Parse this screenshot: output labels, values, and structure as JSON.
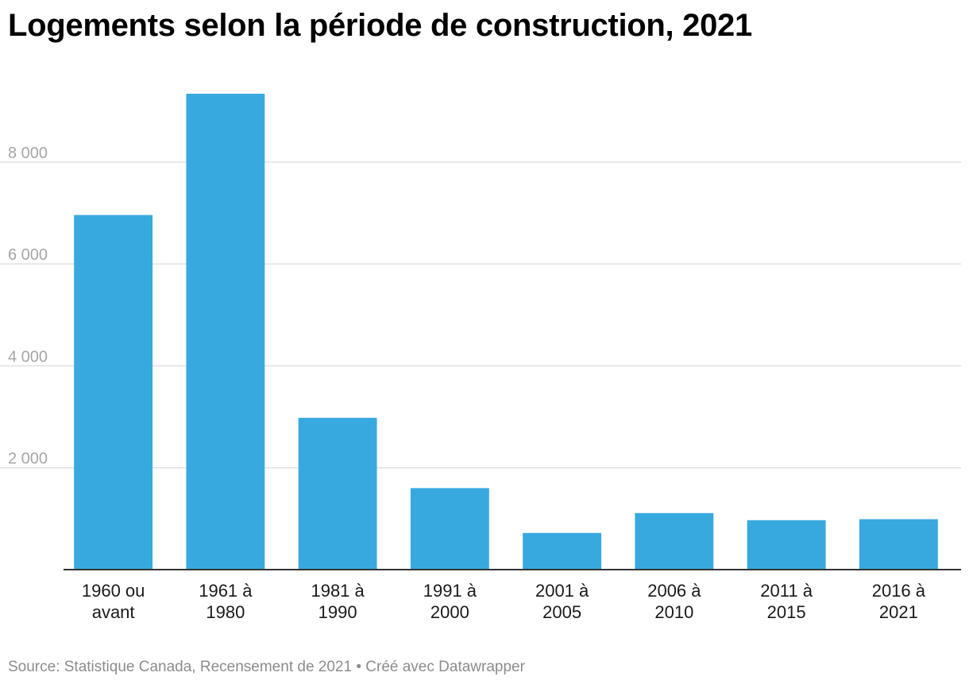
{
  "title": "Logements selon la période de construction, 2021",
  "footer": {
    "source": "Source: Statistique Canada, Recensement de 2021",
    "separator": " • ",
    "credit": "Créé avec Datawrapper"
  },
  "colors": {
    "bar": "#38a9df",
    "grid": "#e0e0e0",
    "axis": "#333333"
  },
  "chart_data": {
    "type": "bar",
    "categories": [
      [
        "1960 ou",
        "avant"
      ],
      [
        "1961 à",
        "1980"
      ],
      [
        "1981 à",
        "1990"
      ],
      [
        "1991 à",
        "2000"
      ],
      [
        "2001 à",
        "2005"
      ],
      [
        "2006 à",
        "2010"
      ],
      [
        "2011 à",
        "2015"
      ],
      [
        "2016 à",
        "2021"
      ]
    ],
    "values": [
      6960,
      9340,
      2980,
      1600,
      720,
      1110,
      970,
      990
    ],
    "ylim": [
      0,
      9340
    ],
    "yticks": [
      2000,
      4000,
      6000,
      8000
    ],
    "ytick_labels": [
      "2 000",
      "4 000",
      "6 000",
      "8 000"
    ],
    "grid": true,
    "xlabel": "",
    "ylabel": ""
  }
}
